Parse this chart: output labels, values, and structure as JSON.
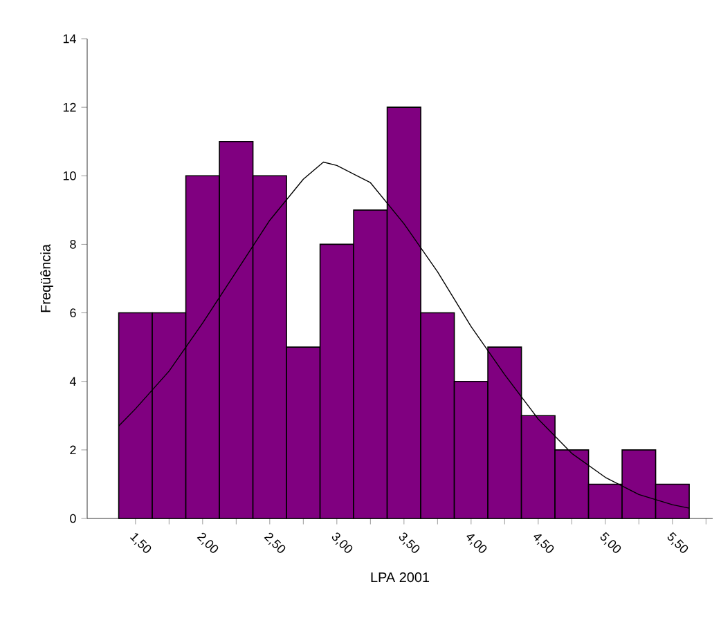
{
  "chart_data": {
    "type": "histogram",
    "xlabel": "LPA 2001",
    "ylabel": "Freqüência",
    "bins": [
      1.375,
      1.625,
      1.875,
      2.125,
      2.375,
      2.625,
      2.875,
      3.125,
      3.375,
      3.625,
      3.875,
      4.125,
      4.375,
      4.625,
      4.875,
      5.125,
      5.375,
      5.625
    ],
    "values": [
      6,
      6,
      10,
      11,
      10,
      5,
      8,
      9,
      12,
      6,
      4,
      5,
      3,
      2,
      1,
      2,
      1
    ],
    "color": "#800080",
    "series": [
      {
        "type": "line",
        "color": "#000000",
        "x": [
          1.375,
          1.5,
          1.75,
          2.0,
          2.25,
          2.5,
          2.75,
          2.9,
          3.0,
          3.25,
          3.5,
          3.75,
          4.0,
          4.25,
          4.5,
          4.75,
          5.0,
          5.25,
          5.5,
          5.625
        ],
        "values": [
          2.7,
          3.2,
          4.3,
          5.7,
          7.2,
          8.7,
          9.9,
          10.4,
          10.3,
          9.8,
          8.6,
          7.2,
          5.6,
          4.2,
          2.9,
          1.9,
          1.2,
          0.7,
          0.4,
          0.3
        ]
      }
    ],
    "xlim": [
      1.14,
      5.8
    ],
    "ylim": [
      0,
      14
    ],
    "xticks": [
      {
        "value": 1.5,
        "label": "1,50"
      },
      {
        "value": 1.75,
        "label": null
      },
      {
        "value": 2.0,
        "label": "2,00"
      },
      {
        "value": 2.25,
        "label": null
      },
      {
        "value": 2.5,
        "label": "2,50"
      },
      {
        "value": 2.75,
        "label": null
      },
      {
        "value": 3.0,
        "label": "3,00"
      },
      {
        "value": 3.25,
        "label": null
      },
      {
        "value": 3.5,
        "label": "3,50"
      },
      {
        "value": 3.75,
        "label": null
      },
      {
        "value": 4.0,
        "label": "4,00"
      },
      {
        "value": 4.25,
        "label": null
      },
      {
        "value": 4.5,
        "label": "4,50"
      },
      {
        "value": 4.75,
        "label": null
      },
      {
        "value": 5.0,
        "label": "5,00"
      },
      {
        "value": 5.25,
        "label": null
      },
      {
        "value": 5.5,
        "label": "5,50"
      },
      {
        "value": 5.75,
        "label": null
      }
    ],
    "yticks": [
      0,
      2,
      4,
      6,
      8,
      10,
      12,
      14
    ]
  }
}
